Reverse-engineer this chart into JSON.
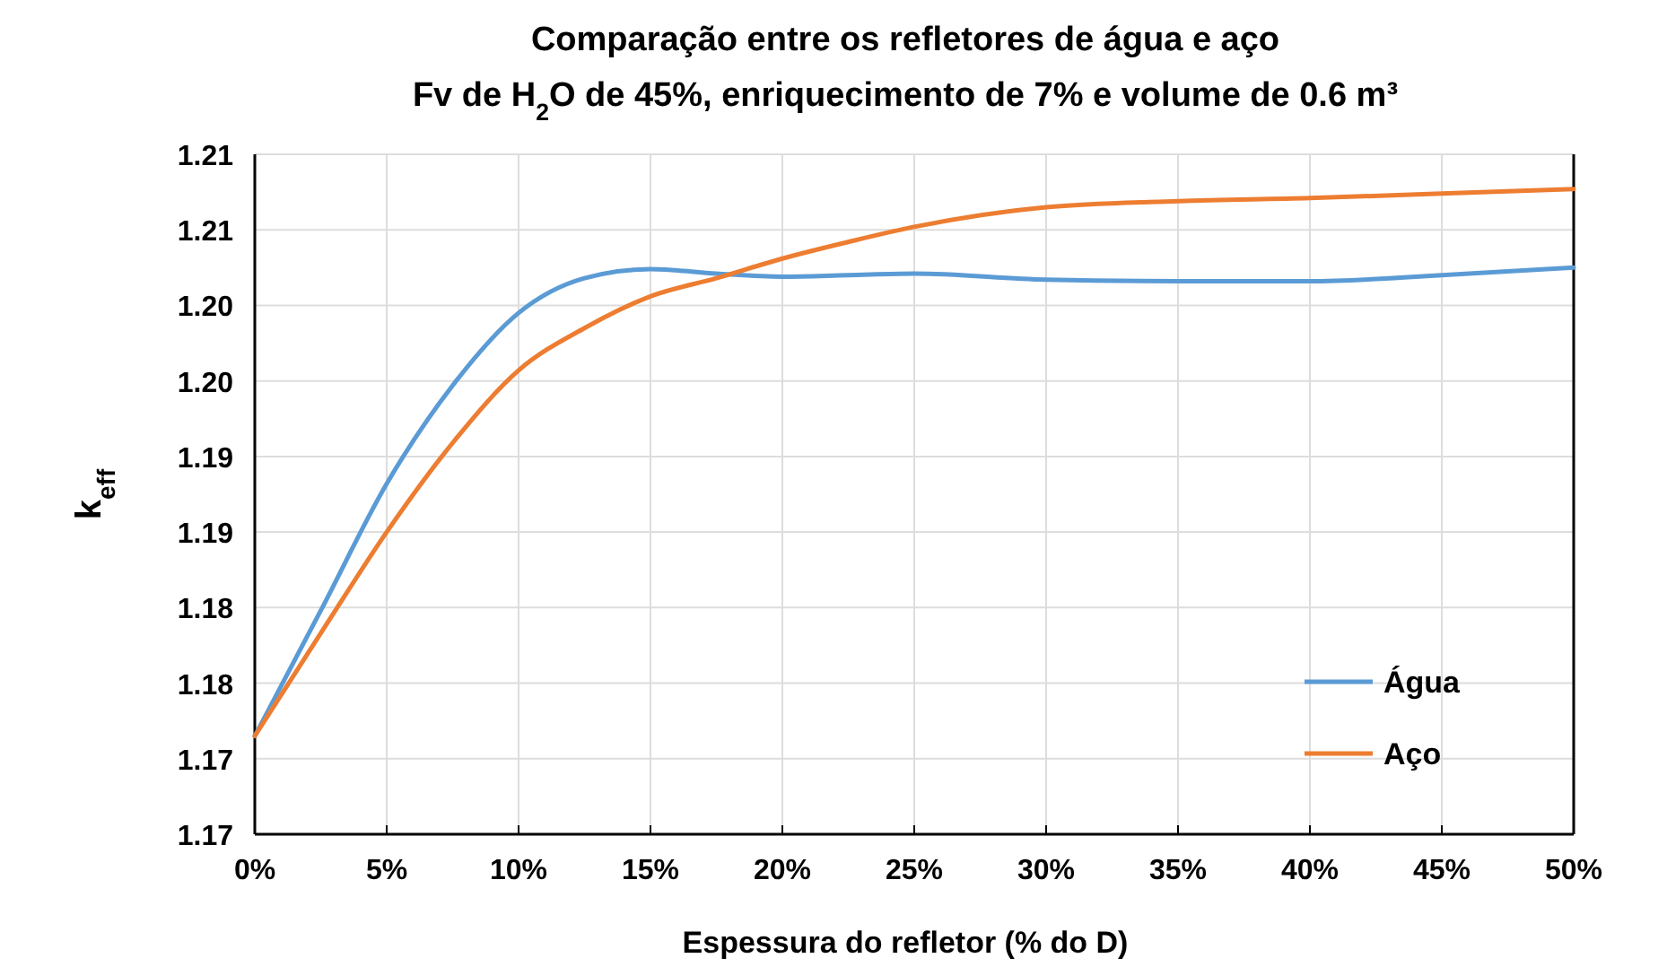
{
  "chart_data": {
    "type": "line",
    "title": "Comparação entre os refletores de água e aço",
    "subtitle": "Fv de H$_{2}$O de 45%, enriquecimento de 7% e volume de 0.6 m³",
    "xlabel": "Espessura do refletor (% do D)",
    "ylabel": "k$_{eff}$",
    "x": [
      0,
      0.025,
      0.05,
      0.075,
      0.1,
      0.125,
      0.15,
      0.175,
      0.2,
      0.225,
      0.25,
      0.3,
      0.35,
      0.4,
      0.45,
      0.5
    ],
    "series": [
      {
        "name": "Água",
        "color": "#5b9bd5",
        "values": [
          1.1715,
          1.1798,
          1.1882,
          1.1947,
          1.1995,
          1.2018,
          1.2024,
          1.2021,
          1.2019,
          1.202,
          1.2021,
          1.2017,
          1.2016,
          1.2016,
          1.202,
          1.2025
        ]
      },
      {
        "name": "Aço",
        "color": "#ed7d31",
        "values": [
          1.1715,
          1.1783,
          1.185,
          1.1909,
          1.1957,
          1.1985,
          1.2006,
          1.2018,
          1.2031,
          1.2042,
          1.2052,
          1.2065,
          1.2069,
          1.2071,
          1.2074,
          1.2077
        ]
      }
    ],
    "xlim": [
      0,
      0.5
    ],
    "xticks": [
      {
        "value": 0,
        "label": "0%"
      },
      {
        "value": 0.05,
        "label": "5%"
      },
      {
        "value": 0.1,
        "label": "10%"
      },
      {
        "value": 0.15,
        "label": "15%"
      },
      {
        "value": 0.2,
        "label": "20%"
      },
      {
        "value": 0.25,
        "label": "25%"
      },
      {
        "value": 0.3,
        "label": "30%"
      },
      {
        "value": 0.35,
        "label": "35%"
      },
      {
        "value": 0.4,
        "label": "40%"
      },
      {
        "value": 0.45,
        "label": "45%"
      },
      {
        "value": 0.5,
        "label": "50%"
      }
    ],
    "ylim": [
      1.165,
      1.21
    ],
    "yticks": [
      {
        "value": 1.165,
        "label": "1.17"
      },
      {
        "value": 1.17,
        "label": "1.17"
      },
      {
        "value": 1.175,
        "label": "1.18"
      },
      {
        "value": 1.18,
        "label": "1.18"
      },
      {
        "value": 1.185,
        "label": "1.19"
      },
      {
        "value": 1.19,
        "label": "1.19"
      },
      {
        "value": 1.195,
        "label": "1.20"
      },
      {
        "value": 1.2,
        "label": "1.20"
      },
      {
        "value": 1.205,
        "label": "1.21"
      },
      {
        "value": 1.21,
        "label": "1.21"
      }
    ],
    "grid": true,
    "legend": "bottom right",
    "marker": "none",
    "line_style": "solid"
  }
}
